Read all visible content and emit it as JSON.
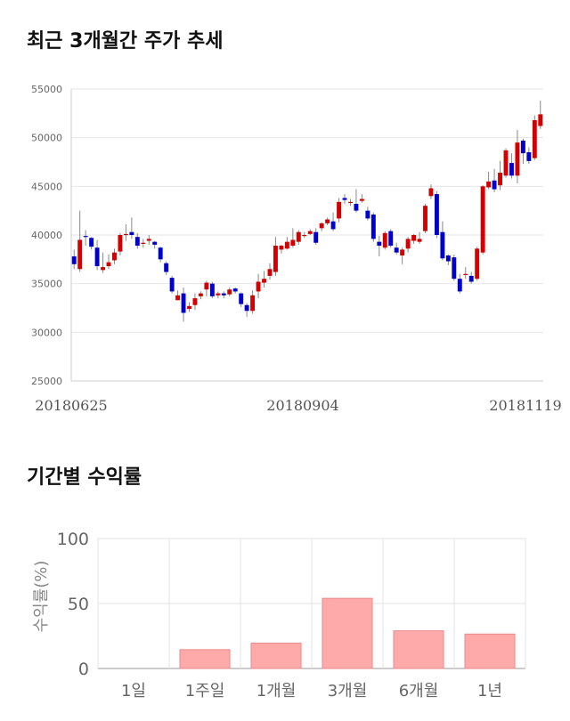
{
  "sections": {
    "price_title": "최근 3개월간 주가 추세",
    "returns_title": "기간별 수익률"
  },
  "colors": {
    "up": "#d40000",
    "down": "#0000cc",
    "wick": "#888888",
    "bar": "#ffaaaa",
    "bar_border": "#e98a8a"
  },
  "chart_data": [
    {
      "type": "candlestick",
      "title": "최근 3개월간 주가 추세",
      "ylim": [
        25000,
        55000
      ],
      "yticks": [
        25000,
        30000,
        35000,
        40000,
        45000,
        50000,
        55000
      ],
      "x_tick_labels": [
        "20180625",
        "20180904",
        "20181119"
      ],
      "grid": true,
      "close": [
        37000,
        39500,
        39800,
        38800,
        36800,
        36700,
        37200,
        38200,
        40000,
        40100,
        40000,
        38900,
        39200,
        39600,
        39000,
        37500,
        36200,
        34200,
        33800,
        32000,
        32700,
        33500,
        34000,
        35100,
        33700,
        34000,
        33800,
        34400,
        34200,
        32900,
        32200,
        33800,
        35200,
        35500,
        36500,
        38900,
        38900,
        39300,
        39500,
        40300,
        40000,
        40400,
        39200,
        41200,
        41600,
        40600,
        43400,
        43600,
        43400,
        42500,
        43700,
        41700,
        39600,
        38900,
        40200,
        38900,
        38200,
        38500,
        39600,
        40000,
        39600,
        43000,
        44800,
        40000,
        37600,
        37300,
        35500,
        34200,
        36000,
        35200,
        38600,
        45000,
        45500,
        44700,
        46400,
        48700,
        46100,
        49500,
        48400,
        47600,
        51800,
        52400
      ],
      "open": [
        37800,
        36500,
        39900,
        39700,
        38700,
        36400,
        36800,
        37400,
        38300,
        40000,
        40300,
        39800,
        39100,
        39400,
        39300,
        38700,
        37100,
        35600,
        33300,
        34000,
        32400,
        32800,
        33700,
        34400,
        35000,
        33800,
        34000,
        33900,
        34500,
        34000,
        32800,
        32200,
        34200,
        35100,
        35800,
        36200,
        38500,
        38600,
        38900,
        39300,
        40000,
        40100,
        40300,
        40700,
        41200,
        41400,
        41700,
        43800,
        43300,
        43200,
        43500,
        42500,
        42100,
        39300,
        38700,
        40400,
        38700,
        37900,
        38600,
        39400,
        39300,
        40400,
        44000,
        44200,
        40300,
        37900,
        37700,
        35500,
        35900,
        35800,
        35500,
        38200,
        44900,
        45600,
        45100,
        46100,
        47400,
        46100,
        49700,
        48500,
        47900,
        51200
      ],
      "high": [
        38500,
        42500,
        40500,
        39800,
        39500,
        38200,
        38000,
        38600,
        40200,
        41100,
        41800,
        40200,
        39600,
        40000,
        39400,
        38800,
        37300,
        35800,
        34300,
        34600,
        33100,
        34000,
        34200,
        35300,
        35200,
        34200,
        34200,
        34600,
        34600,
        34100,
        33000,
        34300,
        36000,
        36300,
        37100,
        39800,
        39000,
        39800,
        40700,
        40500,
        40300,
        40600,
        40700,
        41300,
        41800,
        42300,
        43800,
        44200,
        43700,
        44700,
        44200,
        42900,
        42300,
        39900,
        40400,
        40600,
        39200,
        38700,
        39800,
        40100,
        40300,
        43200,
        45200,
        44500,
        41400,
        38000,
        38000,
        36000,
        36700,
        36200,
        38800,
        45100,
        46500,
        46800,
        47600,
        48900,
        48400,
        50800,
        49900,
        49000,
        52300,
        53800
      ],
      "low": [
        36500,
        36200,
        38900,
        38500,
        36400,
        36100,
        36500,
        37000,
        37900,
        39400,
        39600,
        38600,
        38700,
        39000,
        38600,
        37200,
        35900,
        34000,
        33300,
        31100,
        32100,
        32300,
        33400,
        33700,
        33500,
        33500,
        33500,
        33700,
        34000,
        32600,
        31600,
        31900,
        33500,
        34600,
        35400,
        35800,
        38100,
        38500,
        38700,
        39000,
        39700,
        40000,
        39000,
        40400,
        41000,
        40400,
        41300,
        43200,
        43000,
        42300,
        43300,
        41500,
        39300,
        37800,
        38500,
        38700,
        38000,
        37000,
        38200,
        39100,
        39100,
        40200,
        43700,
        39700,
        37400,
        36900,
        35300,
        34000,
        35500,
        35000,
        35300,
        38000,
        44700,
        44400,
        44600,
        45900,
        45800,
        45300,
        47300,
        47300,
        47700,
        50900
      ]
    },
    {
      "type": "bar",
      "title": "기간별 수익률",
      "ylabel": "수익률(%)",
      "categories": [
        "1일",
        "1주일",
        "1개월",
        "3개월",
        "6개월",
        "1년"
      ],
      "values": [
        0,
        14.5,
        19.5,
        54,
        29,
        26.5
      ],
      "ylim": [
        0,
        100
      ],
      "yticks": [
        0,
        50,
        100
      ],
      "grid": true
    }
  ]
}
